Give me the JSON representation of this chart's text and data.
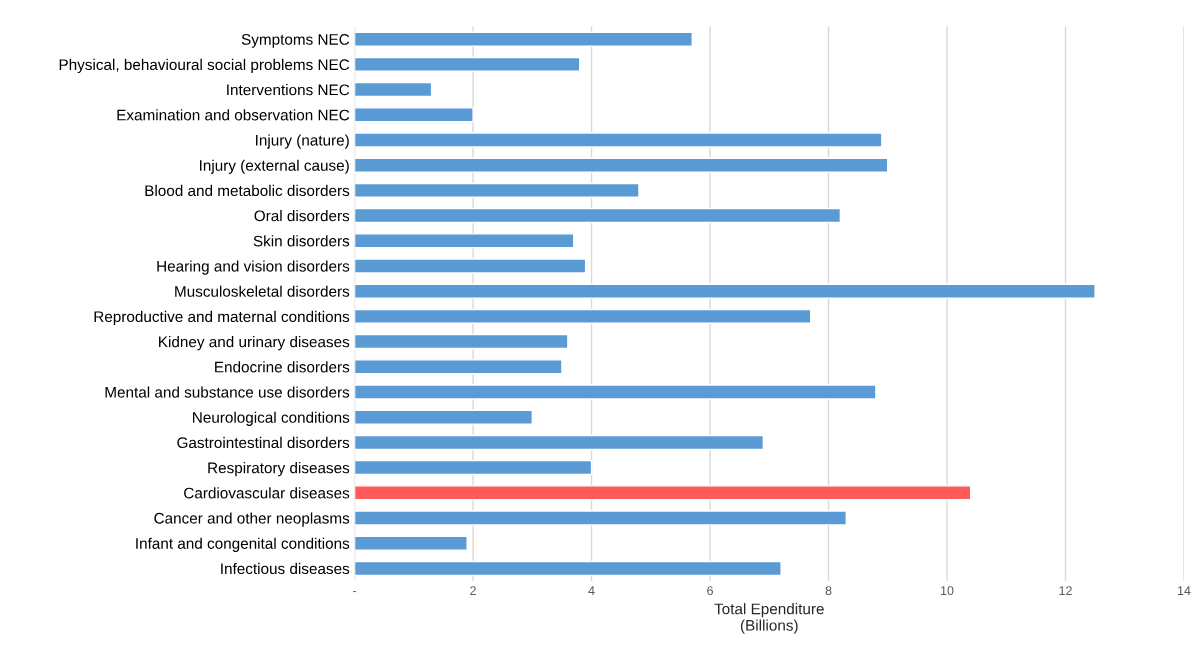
{
  "chart_data": {
    "type": "bar",
    "orientation": "horizontal",
    "xlabel": "Total Ependiture\n(Billions)",
    "categories": [
      "Symptoms NEC",
      "Physical, behavioural social problems NEC",
      "Interventions NEC",
      "Examination and observation NEC",
      "Injury (nature)",
      "Injury (external cause)",
      "Blood and metabolic disorders",
      "Oral disorders",
      "Skin disorders",
      "Hearing and vision disorders",
      "Musculoskeletal disorders",
      "Reproductive and maternal conditions",
      "Kidney and urinary diseases",
      "Endocrine disorders",
      "Mental and substance use disorders",
      "Neurological conditions",
      "Gastrointestinal disorders",
      "Respiratory diseases",
      "Cardiovascular diseases",
      "Cancer and other neoplasms",
      "Infant and congenital conditions",
      "Infectious diseases"
    ],
    "values": [
      5.7,
      3.8,
      1.3,
      2.0,
      8.9,
      9.0,
      4.8,
      8.2,
      3.7,
      3.9,
      12.5,
      7.7,
      3.6,
      3.5,
      8.8,
      3.0,
      6.9,
      4.0,
      10.4,
      8.3,
      1.9,
      7.2
    ],
    "colors": [
      "#5b9bd5",
      "#5b9bd5",
      "#5b9bd5",
      "#5b9bd5",
      "#5b9bd5",
      "#5b9bd5",
      "#5b9bd5",
      "#5b9bd5",
      "#5b9bd5",
      "#5b9bd5",
      "#5b9bd5",
      "#5b9bd5",
      "#5b9bd5",
      "#5b9bd5",
      "#5b9bd5",
      "#5b9bd5",
      "#5b9bd5",
      "#5b9bd5",
      "#ff5b5b",
      "#5b9bd5",
      "#5b9bd5",
      "#5b9bd5"
    ],
    "xlim": [
      0,
      14
    ],
    "xticks": [
      {
        "value": 0,
        "label": "-"
      },
      2,
      4,
      6,
      8,
      10,
      12,
      14
    ],
    "grid": "x"
  }
}
